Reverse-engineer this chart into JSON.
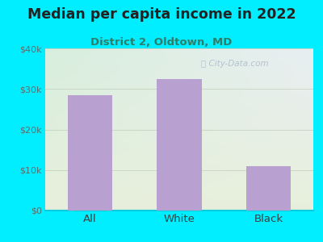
{
  "title": "Median per capita income in 2022",
  "subtitle": "District 2, Oldtown, MD",
  "categories": [
    "All",
    "White",
    "Black"
  ],
  "values": [
    28500,
    32500,
    11000
  ],
  "bar_color": "#b8a0d0",
  "background_outer": "#00eeff",
  "grad_top_left": "#d8eedd",
  "grad_top_right": "#e8eef2",
  "grad_bottom": "#e8f0dc",
  "title_color": "#222222",
  "subtitle_color": "#2e7d6a",
  "tick_label_color": "#557070",
  "xlabel_color": "#334444",
  "ylim": [
    0,
    40000
  ],
  "yticks": [
    0,
    10000,
    20000,
    30000,
    40000
  ],
  "ytick_labels": [
    "$0",
    "$10k",
    "$20k",
    "$30k",
    "$40k"
  ],
  "watermark_text": "City-Data.com",
  "watermark_color": "#aabbcc",
  "title_fontsize": 12.5,
  "subtitle_fontsize": 9.5,
  "tick_fontsize": 8,
  "xlabel_fontsize": 9.5
}
